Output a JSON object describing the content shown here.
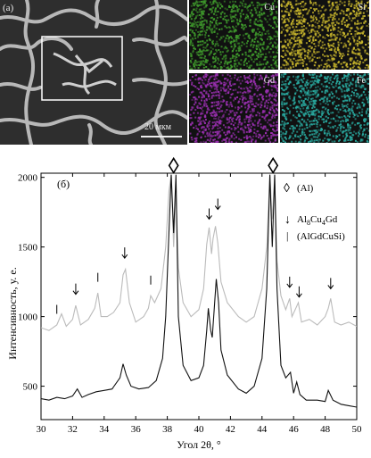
{
  "panel_a": {
    "label": "(а)",
    "scale_label": "20 мкм",
    "maps": [
      {
        "element": "Cu",
        "color": "#3f9a2c"
      },
      {
        "element": "Si",
        "color": "#c7b52c"
      },
      {
        "element": "Gd",
        "color": "#9a2fb0"
      },
      {
        "element": "Fe",
        "color": "#29aaa0"
      }
    ]
  },
  "chart_data": {
    "type": "line",
    "panel_label": "(б)",
    "xlabel": "Угол 2θ, °",
    "ylabel": "Интенсивность, у. е.",
    "xlim": [
      30,
      50
    ],
    "ylim": [
      260,
      2030
    ],
    "xticks": [
      30,
      32,
      34,
      36,
      38,
      40,
      42,
      44,
      46,
      48,
      50
    ],
    "yticks": [
      500,
      1000,
      1500,
      2000
    ],
    "series": [
      {
        "color": "#bbbbbb",
        "x": [
          30.0,
          30.5,
          31.0,
          31.3,
          31.6,
          32.0,
          32.2,
          32.5,
          33.0,
          33.4,
          33.6,
          33.8,
          34.2,
          34.6,
          35.0,
          35.2,
          35.35,
          35.6,
          36.0,
          36.5,
          36.8,
          36.95,
          37.2,
          37.6,
          37.9,
          38.1,
          38.25,
          38.4,
          38.55,
          38.7,
          39.0,
          39.5,
          40.0,
          40.3,
          40.5,
          40.65,
          40.8,
          40.9,
          41.05,
          41.2,
          41.4,
          41.8,
          42.5,
          43.0,
          43.5,
          44.0,
          44.3,
          44.5,
          44.65,
          44.8,
          44.95,
          45.2,
          45.5,
          45.75,
          45.9,
          46.1,
          46.3,
          46.5,
          47.0,
          47.5,
          48.0,
          48.2,
          48.35,
          48.6,
          49.0,
          49.5,
          50.0
        ],
        "y": [
          920,
          900,
          940,
          1020,
          930,
          980,
          1080,
          940,
          980,
          1060,
          1170,
          1000,
          1000,
          1030,
          1100,
          1300,
          1340,
          1100,
          960,
          1000,
          1060,
          1150,
          1100,
          1200,
          1500,
          1900,
          2020,
          1500,
          1900,
          1350,
          1100,
          1000,
          1050,
          1200,
          1520,
          1640,
          1450,
          1560,
          1650,
          1530,
          1250,
          1100,
          1000,
          960,
          1000,
          1200,
          1500,
          2020,
          1700,
          2020,
          1400,
          1150,
          1050,
          1130,
          1000,
          1050,
          1100,
          960,
          980,
          940,
          1000,
          1060,
          1130,
          960,
          940,
          960,
          930
        ]
      },
      {
        "color": "#111111",
        "x": [
          30.0,
          30.5,
          31.0,
          31.5,
          32.0,
          32.3,
          32.6,
          33.0,
          33.5,
          34.0,
          34.5,
          35.0,
          35.2,
          35.4,
          35.7,
          36.2,
          36.8,
          37.3,
          37.7,
          37.9,
          38.1,
          38.25,
          38.4,
          38.55,
          38.7,
          39.0,
          39.5,
          40.0,
          40.3,
          40.5,
          40.6,
          40.75,
          40.85,
          41.0,
          41.1,
          41.25,
          41.4,
          41.8,
          42.5,
          43.0,
          43.5,
          44.0,
          44.3,
          44.5,
          44.65,
          44.8,
          44.95,
          45.2,
          45.5,
          45.8,
          46.0,
          46.2,
          46.4,
          46.8,
          47.5,
          48.0,
          48.2,
          48.5,
          49.0,
          49.5,
          50.0
        ],
        "y": [
          410,
          400,
          420,
          410,
          430,
          480,
          420,
          440,
          460,
          470,
          480,
          560,
          660,
          580,
          500,
          480,
          490,
          540,
          700,
          1000,
          1600,
          2020,
          1600,
          2020,
          1000,
          650,
          540,
          560,
          650,
          900,
          1060,
          900,
          850,
          1100,
          1270,
          1100,
          760,
          580,
          480,
          450,
          500,
          700,
          1200,
          2020,
          1500,
          2020,
          1200,
          650,
          560,
          600,
          450,
          530,
          440,
          400,
          400,
          390,
          470,
          400,
          370,
          360,
          350
        ]
      }
    ],
    "legend": [
      {
        "symbol": "◊",
        "label": "(Al)"
      },
      {
        "symbol": "↓",
        "label_main": "Al",
        "sub1": "8",
        "mid": "Cu",
        "sub2": "4",
        "tail": "Gd"
      },
      {
        "symbol": "|",
        "label": "(AlGdCuSi)"
      }
    ],
    "markers": {
      "diamond": [
        {
          "x": 38.4,
          "y": 2085
        },
        {
          "x": 44.7,
          "y": 2085
        }
      ],
      "arrow": [
        {
          "x": 32.2,
          "y": 1160
        },
        {
          "x": 35.3,
          "y": 1420
        },
        {
          "x": 40.65,
          "y": 1700
        },
        {
          "x": 41.2,
          "y": 1770
        },
        {
          "x": 45.75,
          "y": 1210
        },
        {
          "x": 46.35,
          "y": 1140
        },
        {
          "x": 48.35,
          "y": 1200
        }
      ],
      "bar": [
        {
          "x": 31.0,
          "y": 1020
        },
        {
          "x": 33.6,
          "y": 1250
        },
        {
          "x": 36.95,
          "y": 1230
        }
      ]
    }
  }
}
